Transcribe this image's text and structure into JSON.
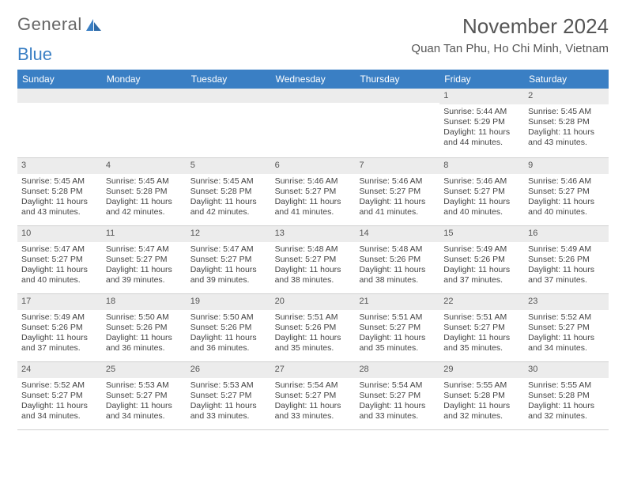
{
  "logo": {
    "text1": "General",
    "text2": "Blue"
  },
  "header": {
    "title": "November 2024",
    "location": "Quan Tan Phu, Ho Chi Minh, Vietnam"
  },
  "colors": {
    "accent": "#3a7fc4",
    "header_bg": "#3a7fc4",
    "daybar_bg": "#ececec",
    "border": "#d0d0d0",
    "text": "#444444",
    "title": "#555555"
  },
  "typography": {
    "title_fontsize": 26,
    "location_fontsize": 15,
    "dow_fontsize": 12,
    "daynum_fontsize": 11,
    "body_fontsize": 10.5
  },
  "dow": [
    "Sunday",
    "Monday",
    "Tuesday",
    "Wednesday",
    "Thursday",
    "Friday",
    "Saturday"
  ],
  "weeks": [
    [
      {
        "day": "",
        "sunrise": "",
        "sunset": "",
        "daylight": ""
      },
      {
        "day": "",
        "sunrise": "",
        "sunset": "",
        "daylight": ""
      },
      {
        "day": "",
        "sunrise": "",
        "sunset": "",
        "daylight": ""
      },
      {
        "day": "",
        "sunrise": "",
        "sunset": "",
        "daylight": ""
      },
      {
        "day": "",
        "sunrise": "",
        "sunset": "",
        "daylight": ""
      },
      {
        "day": "1",
        "sunrise": "Sunrise: 5:44 AM",
        "sunset": "Sunset: 5:29 PM",
        "daylight": "Daylight: 11 hours and 44 minutes."
      },
      {
        "day": "2",
        "sunrise": "Sunrise: 5:45 AM",
        "sunset": "Sunset: 5:28 PM",
        "daylight": "Daylight: 11 hours and 43 minutes."
      }
    ],
    [
      {
        "day": "3",
        "sunrise": "Sunrise: 5:45 AM",
        "sunset": "Sunset: 5:28 PM",
        "daylight": "Daylight: 11 hours and 43 minutes."
      },
      {
        "day": "4",
        "sunrise": "Sunrise: 5:45 AM",
        "sunset": "Sunset: 5:28 PM",
        "daylight": "Daylight: 11 hours and 42 minutes."
      },
      {
        "day": "5",
        "sunrise": "Sunrise: 5:45 AM",
        "sunset": "Sunset: 5:28 PM",
        "daylight": "Daylight: 11 hours and 42 minutes."
      },
      {
        "day": "6",
        "sunrise": "Sunrise: 5:46 AM",
        "sunset": "Sunset: 5:27 PM",
        "daylight": "Daylight: 11 hours and 41 minutes."
      },
      {
        "day": "7",
        "sunrise": "Sunrise: 5:46 AM",
        "sunset": "Sunset: 5:27 PM",
        "daylight": "Daylight: 11 hours and 41 minutes."
      },
      {
        "day": "8",
        "sunrise": "Sunrise: 5:46 AM",
        "sunset": "Sunset: 5:27 PM",
        "daylight": "Daylight: 11 hours and 40 minutes."
      },
      {
        "day": "9",
        "sunrise": "Sunrise: 5:46 AM",
        "sunset": "Sunset: 5:27 PM",
        "daylight": "Daylight: 11 hours and 40 minutes."
      }
    ],
    [
      {
        "day": "10",
        "sunrise": "Sunrise: 5:47 AM",
        "sunset": "Sunset: 5:27 PM",
        "daylight": "Daylight: 11 hours and 40 minutes."
      },
      {
        "day": "11",
        "sunrise": "Sunrise: 5:47 AM",
        "sunset": "Sunset: 5:27 PM",
        "daylight": "Daylight: 11 hours and 39 minutes."
      },
      {
        "day": "12",
        "sunrise": "Sunrise: 5:47 AM",
        "sunset": "Sunset: 5:27 PM",
        "daylight": "Daylight: 11 hours and 39 minutes."
      },
      {
        "day": "13",
        "sunrise": "Sunrise: 5:48 AM",
        "sunset": "Sunset: 5:27 PM",
        "daylight": "Daylight: 11 hours and 38 minutes."
      },
      {
        "day": "14",
        "sunrise": "Sunrise: 5:48 AM",
        "sunset": "Sunset: 5:26 PM",
        "daylight": "Daylight: 11 hours and 38 minutes."
      },
      {
        "day": "15",
        "sunrise": "Sunrise: 5:49 AM",
        "sunset": "Sunset: 5:26 PM",
        "daylight": "Daylight: 11 hours and 37 minutes."
      },
      {
        "day": "16",
        "sunrise": "Sunrise: 5:49 AM",
        "sunset": "Sunset: 5:26 PM",
        "daylight": "Daylight: 11 hours and 37 minutes."
      }
    ],
    [
      {
        "day": "17",
        "sunrise": "Sunrise: 5:49 AM",
        "sunset": "Sunset: 5:26 PM",
        "daylight": "Daylight: 11 hours and 37 minutes."
      },
      {
        "day": "18",
        "sunrise": "Sunrise: 5:50 AM",
        "sunset": "Sunset: 5:26 PM",
        "daylight": "Daylight: 11 hours and 36 minutes."
      },
      {
        "day": "19",
        "sunrise": "Sunrise: 5:50 AM",
        "sunset": "Sunset: 5:26 PM",
        "daylight": "Daylight: 11 hours and 36 minutes."
      },
      {
        "day": "20",
        "sunrise": "Sunrise: 5:51 AM",
        "sunset": "Sunset: 5:26 PM",
        "daylight": "Daylight: 11 hours and 35 minutes."
      },
      {
        "day": "21",
        "sunrise": "Sunrise: 5:51 AM",
        "sunset": "Sunset: 5:27 PM",
        "daylight": "Daylight: 11 hours and 35 minutes."
      },
      {
        "day": "22",
        "sunrise": "Sunrise: 5:51 AM",
        "sunset": "Sunset: 5:27 PM",
        "daylight": "Daylight: 11 hours and 35 minutes."
      },
      {
        "day": "23",
        "sunrise": "Sunrise: 5:52 AM",
        "sunset": "Sunset: 5:27 PM",
        "daylight": "Daylight: 11 hours and 34 minutes."
      }
    ],
    [
      {
        "day": "24",
        "sunrise": "Sunrise: 5:52 AM",
        "sunset": "Sunset: 5:27 PM",
        "daylight": "Daylight: 11 hours and 34 minutes."
      },
      {
        "day": "25",
        "sunrise": "Sunrise: 5:53 AM",
        "sunset": "Sunset: 5:27 PM",
        "daylight": "Daylight: 11 hours and 34 minutes."
      },
      {
        "day": "26",
        "sunrise": "Sunrise: 5:53 AM",
        "sunset": "Sunset: 5:27 PM",
        "daylight": "Daylight: 11 hours and 33 minutes."
      },
      {
        "day": "27",
        "sunrise": "Sunrise: 5:54 AM",
        "sunset": "Sunset: 5:27 PM",
        "daylight": "Daylight: 11 hours and 33 minutes."
      },
      {
        "day": "28",
        "sunrise": "Sunrise: 5:54 AM",
        "sunset": "Sunset: 5:27 PM",
        "daylight": "Daylight: 11 hours and 33 minutes."
      },
      {
        "day": "29",
        "sunrise": "Sunrise: 5:55 AM",
        "sunset": "Sunset: 5:28 PM",
        "daylight": "Daylight: 11 hours and 32 minutes."
      },
      {
        "day": "30",
        "sunrise": "Sunrise: 5:55 AM",
        "sunset": "Sunset: 5:28 PM",
        "daylight": "Daylight: 11 hours and 32 minutes."
      }
    ]
  ]
}
